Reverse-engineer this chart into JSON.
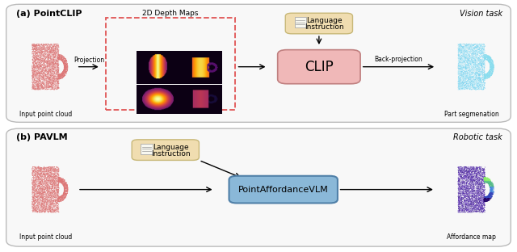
{
  "fig_width": 6.4,
  "fig_height": 3.12,
  "dpi": 100,
  "bg_color": "#ffffff",
  "panel_a": {
    "label": "(a) PointCLIP",
    "task_label": "Vision task",
    "input_label": "Input point cloud",
    "proj_label": "Projection",
    "depth_label": "2D Depth Maps",
    "backproj_label": "Back-projection",
    "output_label": "Part segmenation",
    "clip_box_color": "#f0b8b8",
    "clip_box_text": "CLIP",
    "clip_box_border": "#c08080",
    "lang_box_color": "#f0ddb0",
    "lang_box_text_line1": "Language",
    "lang_box_text_line2": "Instruction",
    "lang_box_border": "#c8b878",
    "dashed_rect_color": "#e05555"
  },
  "panel_b": {
    "label": "(b) PAVLM",
    "task_label": "Robotic task",
    "input_label": "Input point cloud",
    "output_label": "Affordance map",
    "pavlm_box_color": "#8ab8d8",
    "pavlm_box_text": "PointAffordanceVLM",
    "pavlm_box_border": "#5080a8",
    "lang_box_color": "#f0ddb0",
    "lang_box_text_line1": "Language",
    "lang_box_text_line2": "Instruction",
    "lang_box_border": "#c8b878"
  }
}
